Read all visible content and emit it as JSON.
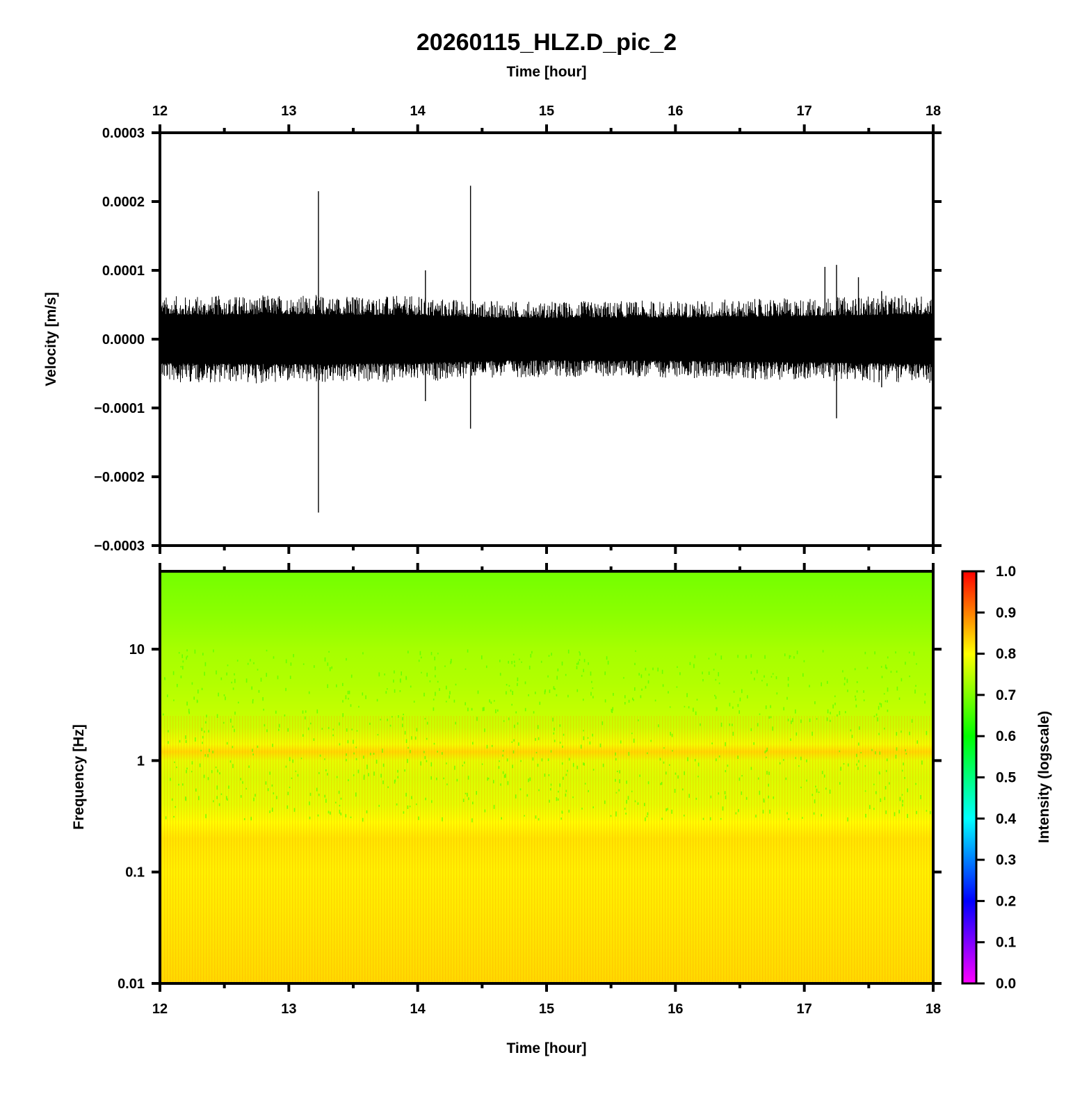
{
  "title": "20260115_HLZ.D_pic_2",
  "chart_data": [
    {
      "type": "line",
      "panel": "waveform",
      "top_xlabel": "Time [hour]",
      "ylabel": "Velocity [m/s]",
      "xlim": [
        12,
        18
      ],
      "ylim": [
        -0.0003,
        0.0003
      ],
      "x_ticks": [
        "12",
        "13",
        "14",
        "15",
        "16",
        "17",
        "18"
      ],
      "y_ticks": [
        "0.0003",
        "0.0002",
        "0.0001",
        "0.0000",
        "−0.0001",
        "−0.0002",
        "−0.0003"
      ],
      "y_tick_values": [
        0.0003,
        0.0002,
        0.0001,
        0.0,
        -0.0001,
        -0.0002,
        -0.0003
      ],
      "line_color": "#000000",
      "noise_envelope": {
        "x": [
          12.0,
          13.0,
          14.0,
          14.5,
          15.0,
          16.0,
          17.0,
          18.0
        ],
        "amplitude": [
          5e-05,
          5.2e-05,
          5e-05,
          4.5e-05,
          4.4e-05,
          4.5e-05,
          4.8e-05,
          5.2e-05
        ]
      },
      "spikes": [
        {
          "x": 13.23,
          "max": 0.000215,
          "min": -0.000252
        },
        {
          "x": 14.06,
          "max": 0.0001,
          "min": -9e-05
        },
        {
          "x": 14.41,
          "max": 0.000223,
          "min": -0.00013
        },
        {
          "x": 17.16,
          "max": 0.000105,
          "min": -3e-05
        },
        {
          "x": 17.25,
          "max": 0.000108,
          "min": -0.000115
        },
        {
          "x": 17.42,
          "max": 9e-05,
          "min": -4e-05
        },
        {
          "x": 17.6,
          "max": 7e-05,
          "min": -7e-05
        }
      ]
    },
    {
      "type": "heatmap",
      "panel": "spectrogram",
      "xlabel": "Time [hour]",
      "ylabel": "Frequency [Hz]",
      "xlim": [
        12,
        18
      ],
      "ylim": [
        0.01,
        50
      ],
      "yscale": "log",
      "x_ticks": [
        "12",
        "13",
        "14",
        "15",
        "16",
        "17",
        "18"
      ],
      "y_ticks": [
        "10",
        "1",
        "0.1",
        "0.01"
      ],
      "y_tick_values": [
        10,
        1,
        0.1,
        0.01
      ],
      "colorbar": {
        "label": "Intensity (logscale)",
        "range": [
          0.0,
          1.0
        ],
        "ticks": [
          "1.0",
          "0.9",
          "0.8",
          "0.7",
          "0.6",
          "0.5",
          "0.4",
          "0.3",
          "0.2",
          "0.1",
          "0.0"
        ],
        "tick_values": [
          1.0,
          0.9,
          0.8,
          0.7,
          0.6,
          0.5,
          0.4,
          0.3,
          0.2,
          0.1,
          0.0
        ],
        "colors": [
          "#ff00ff",
          "#0000ff",
          "#00ffff",
          "#00ff00",
          "#ffff00",
          "#ff0000"
        ]
      },
      "intensity_profile": {
        "frequency": [
          0.01,
          0.03,
          0.1,
          0.2,
          0.28,
          0.4,
          0.7,
          1.0,
          1.2,
          1.4,
          2.0,
          5.0,
          10.0,
          20.0,
          50.0
        ],
        "intensity": [
          0.83,
          0.82,
          0.81,
          0.82,
          0.8,
          0.78,
          0.77,
          0.78,
          0.83,
          0.79,
          0.76,
          0.74,
          0.73,
          0.71,
          0.69
        ]
      }
    }
  ]
}
